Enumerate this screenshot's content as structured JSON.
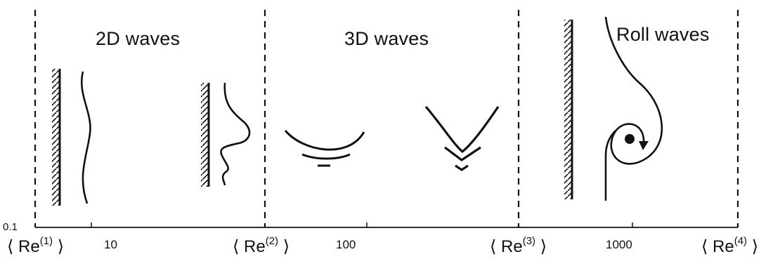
{
  "regions": [
    {
      "id": "2d",
      "title": "2D waves"
    },
    {
      "id": "3d",
      "title": "3D waves"
    },
    {
      "id": "roll",
      "title": "Roll waves"
    }
  ],
  "axis": {
    "min_label": "0.1",
    "tick_labels": [
      "10",
      "100",
      "1000"
    ],
    "scale": "log"
  },
  "reynolds_bounds": [
    {
      "prefix": "⟨ Re",
      "index": "(1)",
      "suffix": " ⟩"
    },
    {
      "prefix": "⟨ Re",
      "index": "(2)",
      "suffix": " ⟩"
    },
    {
      "prefix": "⟨ Re",
      "index": "(3)",
      "suffix": " ⟩"
    },
    {
      "prefix": "⟨ Re",
      "index": "(4)",
      "suffix": " ⟩"
    }
  ],
  "colors": {
    "ink": "#111111",
    "background": "#ffffff"
  }
}
